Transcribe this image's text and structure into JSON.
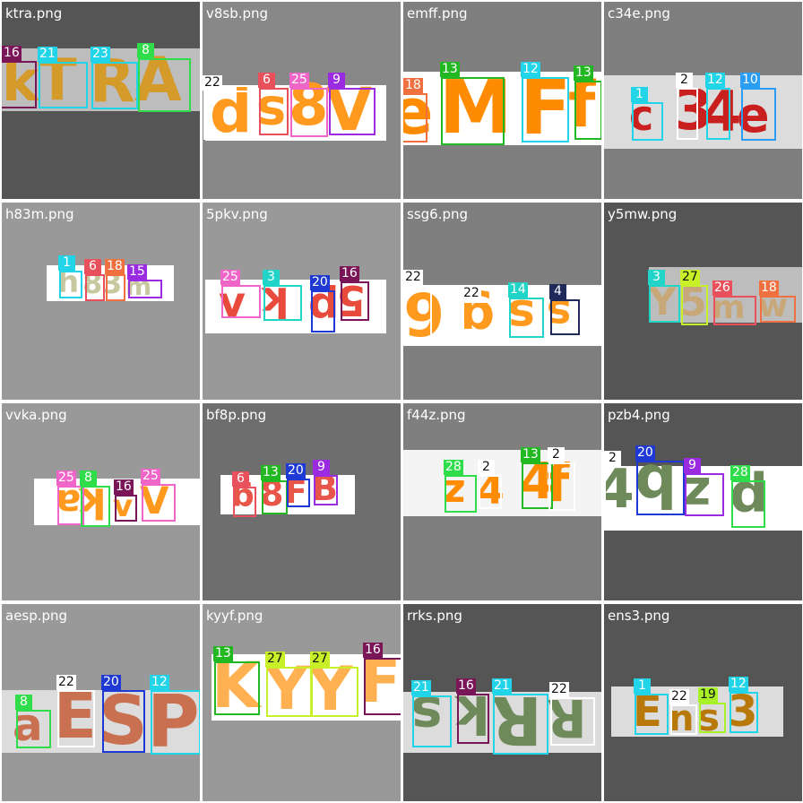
{
  "tiles": [
    {
      "filename": "ktra.png",
      "background": "#555555",
      "strip": {
        "color": "#bdbdbd"
      },
      "glyphs": [
        {
          "char": "k",
          "color": "#d49a2a"
        },
        {
          "char": "T",
          "color": "#d49a2a"
        },
        {
          "char": "R",
          "color": "#d49a2a"
        },
        {
          "char": "A",
          "color": "#d49a2a"
        }
      ],
      "boxes": [
        {
          "label": "16",
          "color": "#7a1558"
        },
        {
          "label": "21",
          "color": "#21d4e8"
        },
        {
          "label": "23",
          "color": "#21d4e8"
        },
        {
          "label": "8",
          "color": "#2fdc4a"
        }
      ]
    },
    {
      "filename": "v8sb.png",
      "background": "#888888",
      "strip": {
        "color": "#ffffff"
      },
      "glyphs": [
        {
          "char": "d",
          "color": "#ff9a1e"
        },
        {
          "char": "s",
          "color": "#ff9a1e"
        },
        {
          "char": "8",
          "color": "#ff9a1e"
        },
        {
          "char": "V",
          "color": "#ff9a1e"
        }
      ],
      "boxes": [
        {
          "label": "22",
          "color": "#ffffff"
        },
        {
          "label": "6",
          "color": "#e8505b"
        },
        {
          "label": "25",
          "color": "#f065c8"
        },
        {
          "label": "9",
          "color": "#9a2be0"
        }
      ]
    },
    {
      "filename": "emff.png",
      "background": "#7f7f7f",
      "strip": {
        "color": "#ffffff"
      },
      "glyphs": [
        {
          "char": "e",
          "color": "#ff8c00"
        },
        {
          "char": "M",
          "color": "#ff8c00"
        },
        {
          "char": "F",
          "color": "#ff8c00"
        },
        {
          "char": "f",
          "color": "#ff8c00"
        }
      ],
      "boxes": [
        {
          "label": "18",
          "color": "#f07040"
        },
        {
          "label": "13",
          "color": "#22b822"
        },
        {
          "label": "12",
          "color": "#21d4e8"
        },
        {
          "label": "13",
          "color": "#22b822"
        }
      ]
    },
    {
      "filename": "c34e.png",
      "background": "#7f7f7f",
      "strip": {
        "color": "#dcdcdc"
      },
      "glyphs": [
        {
          "char": "c",
          "color": "#c9201f"
        },
        {
          "char": "3",
          "color": "#c9201f"
        },
        {
          "char": "4",
          "color": "#c9201f"
        },
        {
          "char": "e",
          "color": "#c9201f"
        }
      ],
      "boxes": [
        {
          "label": "1",
          "color": "#21d4e8"
        },
        {
          "label": "2",
          "color": "#ffffff"
        },
        {
          "label": "12",
          "color": "#21d4e8"
        },
        {
          "label": "10",
          "color": "#2a9df4"
        }
      ]
    },
    {
      "filename": "h83m.png",
      "background": "#999999",
      "strip": {
        "color": "#ffffff"
      },
      "glyphs": [
        {
          "char": "h",
          "color": "#c8c8a0"
        },
        {
          "char": "8",
          "color": "#c8c8a0"
        },
        {
          "char": "3",
          "color": "#c8c8a0"
        },
        {
          "char": "m",
          "color": "#c8c8a0"
        }
      ],
      "boxes": [
        {
          "label": "1",
          "color": "#21d4e8"
        },
        {
          "label": "6",
          "color": "#e8505b"
        },
        {
          "label": "18",
          "color": "#f07040"
        },
        {
          "label": "15",
          "color": "#9a2be0"
        }
      ]
    },
    {
      "filename": "5pkv.png",
      "background": "#999999",
      "strip": {
        "color": "#ffffff"
      },
      "glyphs": [
        {
          "char": "v",
          "color": "#e84b3c"
        },
        {
          "char": "k",
          "color": "#e84b3c"
        },
        {
          "char": "p",
          "color": "#e84b3c"
        },
        {
          "char": "5",
          "color": "#e84b3c"
        }
      ],
      "boxes": [
        {
          "label": "25",
          "color": "#f065c8"
        },
        {
          "label": "3",
          "color": "#21d4c8"
        },
        {
          "label": "20",
          "color": "#1f3ad4"
        },
        {
          "label": "16",
          "color": "#7a1558"
        }
      ]
    },
    {
      "filename": "ssg6.png",
      "background": "#7f7f7f",
      "strip": {
        "color": "#ffffff"
      },
      "glyphs": [
        {
          "char": "6",
          "color": "#ff9a1e"
        },
        {
          "char": "g",
          "color": "#ff9a1e"
        },
        {
          "char": "s",
          "color": "#ff9a1e"
        },
        {
          "char": "s",
          "color": "#ff9a1e"
        }
      ],
      "boxes": [
        {
          "label": "22",
          "color": "#ffffff"
        },
        {
          "label": "22",
          "color": "#ffffff"
        },
        {
          "label": "14",
          "color": "#21d4c8"
        },
        {
          "label": "4",
          "color": "#1f2a5a"
        }
      ]
    },
    {
      "filename": "y5mw.png",
      "background": "#555555",
      "strip": {
        "color": "#bdbdbd"
      },
      "glyphs": [
        {
          "char": "Y",
          "color": "#c8a878"
        },
        {
          "char": "5",
          "color": "#c8a878"
        },
        {
          "char": "m",
          "color": "#c8a878"
        },
        {
          "char": "w",
          "color": "#c8a878"
        }
      ],
      "boxes": [
        {
          "label": "3",
          "color": "#21d4c8"
        },
        {
          "label": "27",
          "color": "#c8f028"
        },
        {
          "label": "26",
          "color": "#e8505b"
        },
        {
          "label": "18",
          "color": "#f07040"
        }
      ]
    },
    {
      "filename": "vvka.png",
      "background": "#999999",
      "strip": {
        "color": "#ffffff"
      },
      "glyphs": [
        {
          "char": "a",
          "color": "#ff9a1e"
        },
        {
          "char": "k",
          "color": "#ff9a1e"
        },
        {
          "char": "v",
          "color": "#ff9a1e"
        },
        {
          "char": "V",
          "color": "#ff9a1e"
        }
      ],
      "boxes": [
        {
          "label": "25",
          "color": "#f065c8"
        },
        {
          "label": "8",
          "color": "#2fdc4a"
        },
        {
          "label": "16",
          "color": "#7a1558"
        },
        {
          "label": "25",
          "color": "#f065c8"
        }
      ]
    },
    {
      "filename": "bf8p.png",
      "background": "#6e6e6e",
      "strip": {
        "color": "#ffffff"
      },
      "glyphs": [
        {
          "char": "g",
          "color": "#e8564a"
        },
        {
          "char": "8",
          "color": "#e8564a"
        },
        {
          "char": "F",
          "color": "#e8564a"
        },
        {
          "char": "B",
          "color": "#e8564a"
        }
      ],
      "boxes": [
        {
          "label": "6",
          "color": "#e8505b"
        },
        {
          "label": "13",
          "color": "#22b822"
        },
        {
          "label": "20",
          "color": "#1f3ad4"
        },
        {
          "label": "9",
          "color": "#9a2be0"
        }
      ]
    },
    {
      "filename": "f44z.png",
      "background": "#7f7f7f",
      "strip": {
        "color": "#f4f4f4"
      },
      "glyphs": [
        {
          "char": "z",
          "color": "#ff8c00"
        },
        {
          "char": "4",
          "color": "#ff8c00"
        },
        {
          "char": "4",
          "color": "#ff8c00"
        },
        {
          "char": "f",
          "color": "#ff8c00"
        }
      ],
      "boxes": [
        {
          "label": "28",
          "color": "#2fdc4a"
        },
        {
          "label": "2",
          "color": "#ffffff"
        },
        {
          "label": "13",
          "color": "#22b822"
        },
        {
          "label": "2",
          "color": "#ffffff"
        }
      ]
    },
    {
      "filename": "pzb4.png",
      "background": "#555555",
      "strip": {
        "color": "#ffffff"
      },
      "glyphs": [
        {
          "char": "4",
          "color": "#6e8a5a"
        },
        {
          "char": "b",
          "color": "#6e8a5a"
        },
        {
          "char": "z",
          "color": "#6e8a5a"
        },
        {
          "char": "p",
          "color": "#6e8a5a"
        }
      ],
      "boxes": [
        {
          "label": "2",
          "color": "#ffffff"
        },
        {
          "label": "20",
          "color": "#1f3ad4"
        },
        {
          "label": "9",
          "color": "#9a2be0"
        },
        {
          "label": "28",
          "color": "#2fdc4a"
        }
      ]
    },
    {
      "filename": "aesp.png",
      "background": "#999999",
      "strip": {
        "color": "#dcdcdc"
      },
      "glyphs": [
        {
          "char": "a",
          "color": "#c87050"
        },
        {
          "char": "E",
          "color": "#c87050"
        },
        {
          "char": "S",
          "color": "#c87050"
        },
        {
          "char": "P",
          "color": "#c87050"
        }
      ],
      "boxes": [
        {
          "label": "8",
          "color": "#2fdc4a"
        },
        {
          "label": "22",
          "color": "#ffffff"
        },
        {
          "label": "20",
          "color": "#1f3ad4"
        },
        {
          "label": "12",
          "color": "#21d4e8"
        }
      ]
    },
    {
      "filename": "kyyf.png",
      "background": "#999999",
      "strip": {
        "color": "#ffffff"
      },
      "glyphs": [
        {
          "char": "K",
          "color": "#ffb050"
        },
        {
          "char": "Y",
          "color": "#ffb050"
        },
        {
          "char": "Y",
          "color": "#ffb050"
        },
        {
          "char": "F",
          "color": "#ffb050"
        }
      ],
      "boxes": [
        {
          "label": "13",
          "color": "#22b822"
        },
        {
          "label": "27",
          "color": "#c8f028"
        },
        {
          "label": "27",
          "color": "#c8f028"
        },
        {
          "label": "16",
          "color": "#7a1558"
        }
      ]
    },
    {
      "filename": "rrks.png",
      "background": "#555555",
      "strip": {
        "color": "#dcdcdc"
      },
      "glyphs": [
        {
          "char": "s",
          "color": "#6e8a5a"
        },
        {
          "char": "k",
          "color": "#6e8a5a"
        },
        {
          "char": "R",
          "color": "#6e8a5a"
        },
        {
          "char": "R",
          "color": "#6e8a5a"
        }
      ],
      "boxes": [
        {
          "label": "21",
          "color": "#21d4e8"
        },
        {
          "label": "16",
          "color": "#7a1558"
        },
        {
          "label": "21",
          "color": "#21d4e8"
        },
        {
          "label": "22",
          "color": "#ffffff"
        }
      ]
    },
    {
      "filename": "ens3.png",
      "background": "#555555",
      "strip": {
        "color": "#dcdcdc"
      },
      "glyphs": [
        {
          "char": "E",
          "color": "#b8780a"
        },
        {
          "char": "n",
          "color": "#b8780a"
        },
        {
          "char": "s",
          "color": "#b8780a"
        },
        {
          "char": "3",
          "color": "#b8780a"
        }
      ],
      "boxes": [
        {
          "label": "1",
          "color": "#21d4e8"
        },
        {
          "label": "22",
          "color": "#ffffff"
        },
        {
          "label": "19",
          "color": "#a8f028"
        },
        {
          "label": "12",
          "color": "#21d4e8"
        }
      ]
    }
  ]
}
